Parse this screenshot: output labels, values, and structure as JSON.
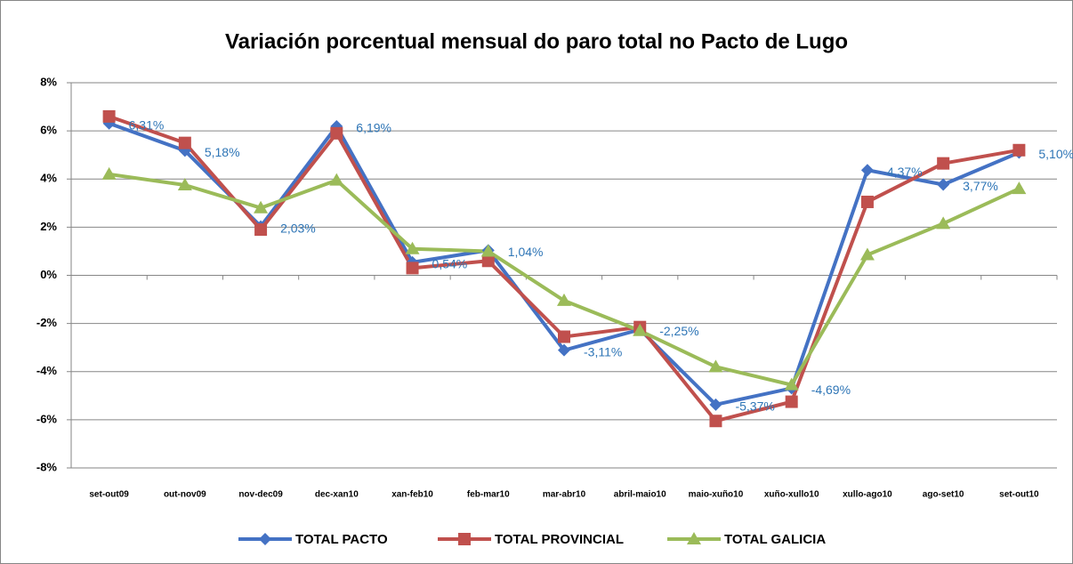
{
  "chart_data": {
    "type": "line",
    "title": "Variación porcentual mensual do paro total no Pacto de Lugo",
    "categories": [
      "set-out09",
      "out-nov09",
      "nov-dec09",
      "dec-xan10",
      "xan-feb10",
      "feb-mar10",
      "mar-abr10",
      "abril-maio10",
      "maio-xuño10",
      "xuño-xullo10",
      "xullo-ago10",
      "ago-set10",
      "set-out10"
    ],
    "series": [
      {
        "name": "TOTAL PACTO",
        "color": "#4472C4",
        "marker": "diamond",
        "values": [
          6.31,
          5.18,
          2.03,
          6.19,
          0.54,
          1.04,
          -3.11,
          -2.25,
          -5.37,
          -4.69,
          4.37,
          3.77,
          5.1
        ],
        "value_labels": [
          "6,31%",
          "5,18%",
          "2,03%",
          "6,19%",
          "0,54%",
          "1,04%",
          "-3,11%",
          "-2,25%",
          "-5,37%",
          "-4,69%",
          "4,37%",
          "3,77%",
          "5,10%"
        ],
        "label_color": "#2E75B6"
      },
      {
        "name": "TOTAL PROVINCIAL",
        "color": "#C0504D",
        "marker": "square",
        "values": [
          6.6,
          5.5,
          1.9,
          5.9,
          0.3,
          0.6,
          -2.55,
          -2.15,
          -6.05,
          -5.25,
          3.05,
          4.65,
          5.2
        ]
      },
      {
        "name": "TOTAL GALICIA",
        "color": "#9BBB59",
        "marker": "triangle",
        "values": [
          4.2,
          3.75,
          2.8,
          3.95,
          1.1,
          1.0,
          -1.05,
          -2.3,
          -3.8,
          -4.55,
          0.85,
          2.15,
          3.6
        ]
      }
    ],
    "ylim": [
      -8,
      8
    ],
    "yticks": [
      {
        "value": -8,
        "label": "-8%"
      },
      {
        "value": -6,
        "label": "-6%"
      },
      {
        "value": -4,
        "label": "-4%"
      },
      {
        "value": -2,
        "label": "-2%"
      },
      {
        "value": 0,
        "label": "0%"
      },
      {
        "value": 2,
        "label": "2%"
      },
      {
        "value": 4,
        "label": "4%"
      },
      {
        "value": 6,
        "label": "6%"
      },
      {
        "value": 8,
        "label": "8%"
      }
    ],
    "grid": true,
    "legend": "bottom"
  }
}
